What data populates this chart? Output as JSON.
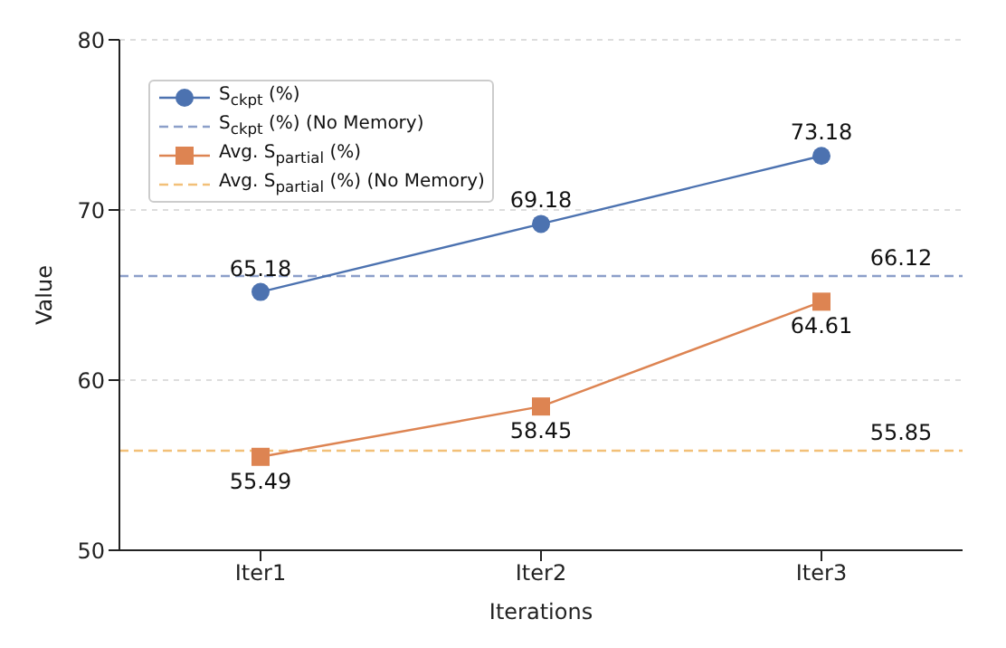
{
  "chart_data": {
    "type": "line",
    "xlabel": "Iterations",
    "ylabel": "Value",
    "categories": [
      "Iter1",
      "Iter2",
      "Iter3"
    ],
    "series": [
      {
        "name": "S$_{ckpt}$ (%)",
        "color": "#4c72b0",
        "values": [
          65.18,
          69.18,
          73.18
        ],
        "marker": "circle"
      },
      {
        "name": "Avg. S$_{partial}$ (%)",
        "color": "#dd8452",
        "values": [
          55.49,
          58.45,
          64.61
        ],
        "marker": "square"
      }
    ],
    "ref_lines": [
      {
        "axis": "y",
        "value": 66.12,
        "label": "S$_{ckpt}$ (%) (No Memory)",
        "color": "#8c9fc9",
        "line_style": "dashed"
      },
      {
        "axis": "y",
        "value": 55.85,
        "label": "Avg. S$_{partial}$ (%) (No Memory)",
        "color": "#f2c078",
        "line_style": "dashed"
      }
    ],
    "annotations": [
      {
        "text": "66.12",
        "y": 66.12
      },
      {
        "text": "55.85",
        "y": 55.85
      }
    ],
    "ylim": [
      50,
      80
    ],
    "yticks": [
      50,
      60,
      70,
      80
    ],
    "grid": "y",
    "legend": "top left",
    "data_labels": true,
    "line_style": "solid"
  }
}
